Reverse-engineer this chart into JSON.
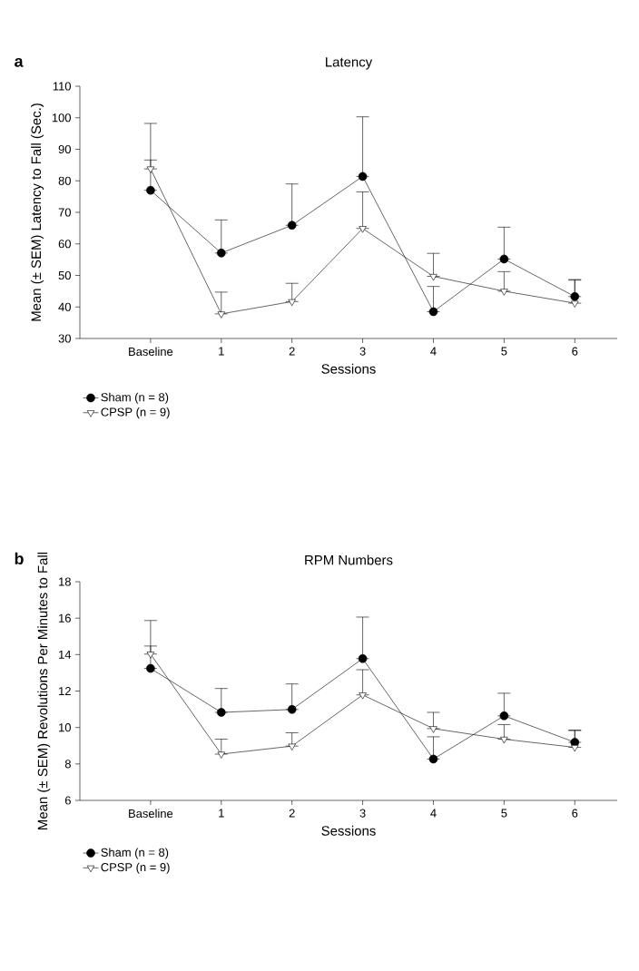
{
  "chart_data": [
    {
      "type": "line",
      "title": "Latency",
      "xlabel": "Sessions",
      "ylabel": "Mean (± SEM) Latency to Fall (Sec.)",
      "annotations": [
        "a"
      ],
      "categories": [
        "Baseline",
        "1",
        "2",
        "3",
        "4",
        "5",
        "6"
      ],
      "series": [
        {
          "name": "Sham (n = 8)",
          "color": "#000000",
          "marker": "circle",
          "values": [
            77,
            57.1,
            65.9,
            81.4,
            38.5,
            55.2,
            43.3
          ],
          "errors": [
            [
              77,
              86.6
            ],
            [
              57.1,
              67.6
            ],
            [
              65.9,
              79
            ],
            [
              81.4,
              100.3
            ],
            [
              38.5,
              46.5
            ],
            [
              55.2,
              65.3
            ],
            [
              43.3,
              48.7
            ]
          ]
        },
        {
          "name": "CPSP (n = 9)",
          "color": "#ffffff",
          "marker": "triangle",
          "values": [
            83.8,
            37.8,
            41.7,
            64.9,
            49.7,
            45,
            41.2
          ],
          "errors": [
            [
              83.8,
              98.2
            ],
            [
              37.8,
              44.7
            ],
            [
              41.7,
              47.5
            ],
            [
              64.9,
              76.5
            ],
            [
              49.7,
              57
            ],
            [
              45,
              51.2
            ],
            [
              41.2,
              48.5
            ]
          ]
        }
      ],
      "ylim": [
        30,
        110
      ],
      "yticks": [
        30,
        40,
        50,
        60,
        70,
        80,
        90,
        100,
        110
      ],
      "legend": "bottom left",
      "grid": false
    },
    {
      "type": "line",
      "title": "RPM Numbers",
      "xlabel": "Sessions",
      "ylabel": "Mean (± SEM) Revolutions Per Minutes to Fall",
      "annotations": [
        "b"
      ],
      "categories": [
        "Baseline",
        "1",
        "2",
        "3",
        "4",
        "5",
        "6"
      ],
      "series": [
        {
          "name": "Sham (n = 8)",
          "color": "#000000",
          "marker": "circle",
          "values": [
            13.24,
            10.83,
            10.99,
            13.78,
            8.27,
            10.64,
            9.19
          ],
          "errors": [
            [
              13.24,
              14.47
            ],
            [
              10.83,
              12.14
            ],
            [
              10.99,
              12.39
            ],
            [
              13.78,
              16.06
            ],
            [
              8.27,
              9.49
            ],
            [
              10.64,
              11.88
            ],
            [
              9.19,
              9.86
            ]
          ]
        },
        {
          "name": "CPSP (n = 9)",
          "color": "#ffffff",
          "marker": "triangle",
          "values": [
            14.03,
            8.54,
            8.98,
            11.79,
            9.94,
            9.36,
            8.91
          ],
          "errors": [
            [
              14.03,
              15.87
            ],
            [
              8.54,
              9.36
            ],
            [
              8.98,
              9.71
            ],
            [
              11.79,
              13.17
            ],
            [
              9.94,
              10.83
            ],
            [
              9.36,
              10.16
            ],
            [
              8.91,
              9.83
            ]
          ]
        }
      ],
      "ylim": [
        6,
        18
      ],
      "yticks": [
        6,
        8,
        10,
        12,
        14,
        16,
        18
      ],
      "legend": "bottom left",
      "grid": false
    }
  ]
}
